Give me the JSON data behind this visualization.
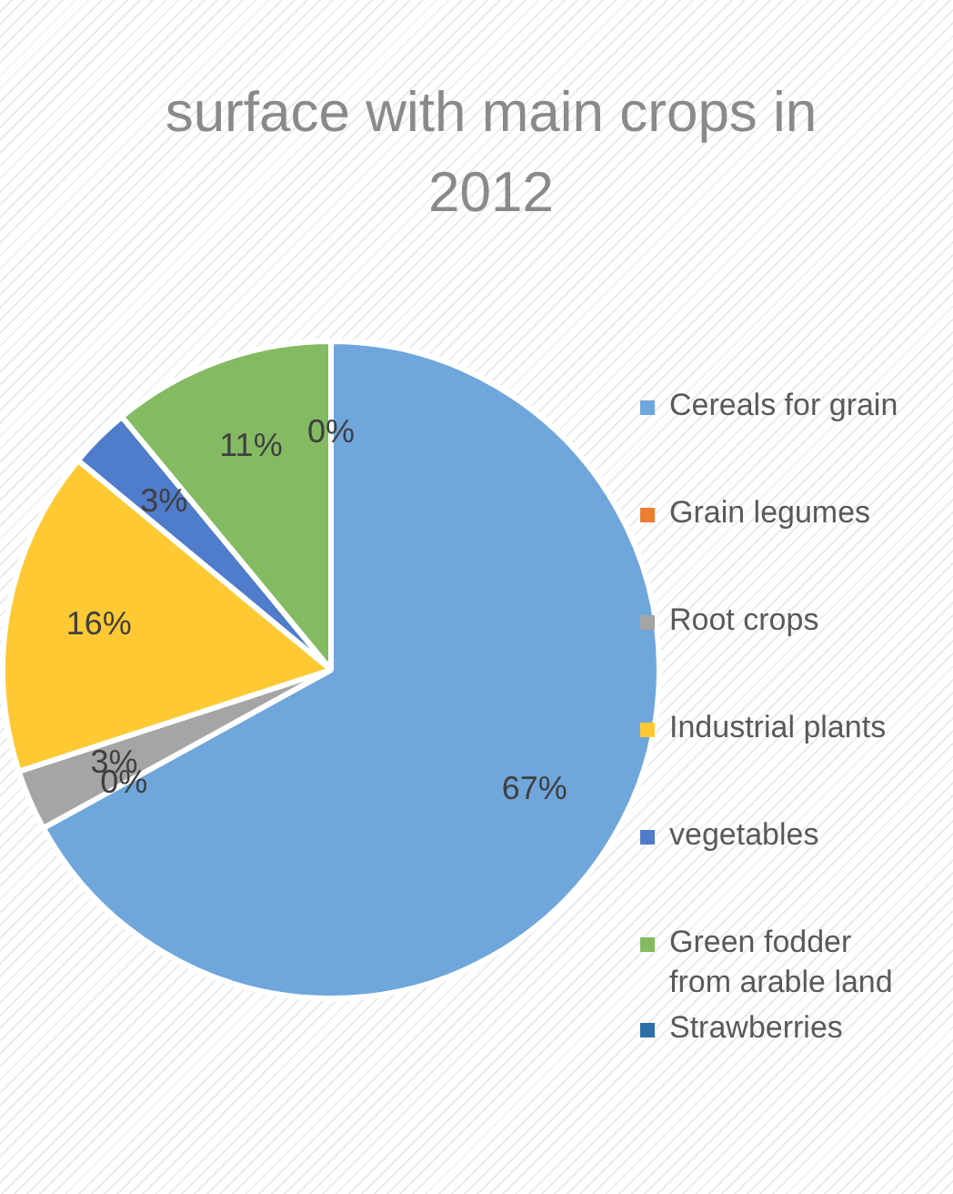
{
  "chart_data": {
    "type": "pie",
    "title": "surface with main crops in 2012",
    "categories": [
      "Cereals for grain",
      "Grain legumes",
      "Root crops",
      "Industrial  plants",
      "vegetables",
      "Green fodder from arable land",
      "Strawberries"
    ],
    "values": [
      67,
      0,
      3,
      16,
      3,
      11,
      0
    ],
    "colors": [
      "#6fa6dc",
      "#ed7d31",
      "#a5a5a5",
      "#ffc933",
      "#4f7ccb",
      "#84bb62",
      "#2e6fa8"
    ],
    "value_labels": [
      "67%",
      "0%",
      "3%",
      "16%",
      "3%",
      "11%",
      "0%"
    ],
    "legend": "right"
  }
}
